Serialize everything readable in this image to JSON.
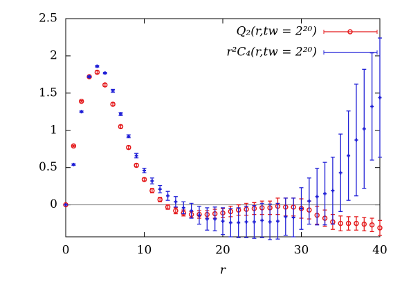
{
  "chart_data": {
    "type": "scatter",
    "x_label": "r",
    "x": [
      0,
      1,
      2,
      3,
      4,
      5,
      6,
      7,
      8,
      9,
      10,
      11,
      12,
      13,
      14,
      15,
      16,
      17,
      18,
      19,
      20,
      21,
      22,
      23,
      24,
      25,
      26,
      27,
      28,
      29,
      30,
      31,
      32,
      33,
      34,
      35,
      36,
      37,
      38,
      39,
      40
    ],
    "xlim": [
      0,
      40
    ],
    "xticks": [
      0,
      10,
      20,
      30,
      40
    ],
    "ylim": [
      -0.43,
      2.5
    ],
    "yticks": [
      0,
      0.5,
      1,
      1.5,
      2,
      2.5
    ],
    "series": [
      {
        "name": "Q₂(r,tw = 2²⁰)",
        "color": "#e41a1c",
        "marker": "circle",
        "values": [
          0,
          0.79,
          1.39,
          1.72,
          1.78,
          1.61,
          1.35,
          1.05,
          0.77,
          0.53,
          0.34,
          0.19,
          0.07,
          -0.03,
          -0.08,
          -0.11,
          -0.13,
          -0.13,
          -0.13,
          -0.12,
          -0.11,
          -0.09,
          -0.07,
          -0.06,
          -0.05,
          -0.04,
          -0.04,
          -0.02,
          -0.03,
          -0.03,
          -0.05,
          -0.07,
          -0.14,
          -0.18,
          -0.23,
          -0.25,
          -0.25,
          -0.25,
          -0.26,
          -0.27,
          -0.31
        ],
        "errors": [
          0,
          0.01,
          0.01,
          0.01,
          0.02,
          0.02,
          0.02,
          0.02,
          0.02,
          0.02,
          0.02,
          0.03,
          0.03,
          0.03,
          0.04,
          0.04,
          0.04,
          0.05,
          0.05,
          0.06,
          0.06,
          0.07,
          0.07,
          0.08,
          0.08,
          0.09,
          0.09,
          0.11,
          0.12,
          0.12,
          0.13,
          0.12,
          0.12,
          0.11,
          0.1,
          0.1,
          0.09,
          0.09,
          0.09,
          0.09,
          0.1
        ]
      },
      {
        "name": "r²C₄(r,tw = 2²⁰)",
        "color": "#1f1fd6",
        "marker": "plus",
        "values": [
          0,
          0.54,
          1.25,
          1.72,
          1.86,
          1.77,
          1.53,
          1.22,
          0.92,
          0.66,
          0.46,
          0.32,
          0.21,
          0.12,
          0.04,
          -0.04,
          -0.08,
          -0.14,
          -0.19,
          -0.19,
          -0.22,
          -0.24,
          -0.24,
          -0.23,
          -0.23,
          -0.21,
          -0.23,
          -0.22,
          -0.16,
          -0.17,
          -0.05,
          0.05,
          0.11,
          0.15,
          0.19,
          0.43,
          0.66,
          0.87,
          1.02,
          1.32,
          1.44
        ],
        "errors": [
          0,
          0.01,
          0.01,
          0.01,
          0.01,
          0.01,
          0.02,
          0.02,
          0.02,
          0.03,
          0.03,
          0.04,
          0.05,
          0.06,
          0.07,
          0.08,
          0.1,
          0.12,
          0.15,
          0.16,
          0.18,
          0.19,
          0.2,
          0.21,
          0.22,
          0.23,
          0.24,
          0.24,
          0.25,
          0.26,
          0.28,
          0.31,
          0.38,
          0.42,
          0.45,
          0.52,
          0.6,
          0.75,
          0.8,
          0.72,
          0.8
        ]
      }
    ]
  }
}
